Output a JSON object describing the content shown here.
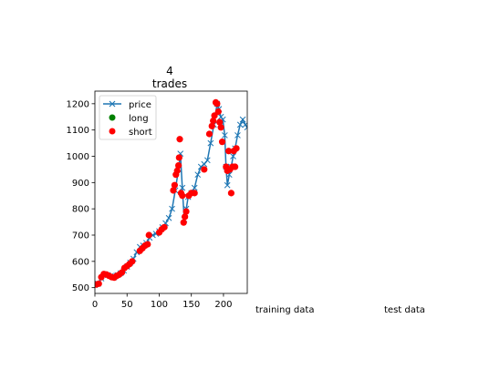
{
  "chart_data": {
    "type": "line",
    "title_lines": [
      "4",
      "trades"
    ],
    "xlabel": "",
    "ylabel": "",
    "xlim": [
      0,
      237
    ],
    "ylim": [
      478,
      1248
    ],
    "xticks": [
      0,
      50,
      100,
      150,
      200
    ],
    "yticks": [
      500,
      600,
      700,
      800,
      900,
      1000,
      1100,
      1200
    ],
    "grid": false,
    "legend_position": "top-left",
    "colors": {
      "price": "#1f77b4",
      "long": "#008000",
      "short": "#ff0000"
    },
    "legend": [
      {
        "label": "price",
        "marker": "x-line",
        "color": "#1f77b4"
      },
      {
        "label": "long",
        "marker": "dot",
        "color": "#008000"
      },
      {
        "label": "short",
        "marker": "dot",
        "color": "#ff0000"
      }
    ],
    "series": [
      {
        "name": "price",
        "marker": "x",
        "points": [
          [
            0,
            510
          ],
          [
            5,
            515
          ],
          [
            10,
            535
          ],
          [
            15,
            550
          ],
          [
            20,
            548
          ],
          [
            25,
            545
          ],
          [
            30,
            540
          ],
          [
            35,
            548
          ],
          [
            40,
            555
          ],
          [
            45,
            565
          ],
          [
            50,
            580
          ],
          [
            55,
            595
          ],
          [
            60,
            610
          ],
          [
            65,
            635
          ],
          [
            70,
            655
          ],
          [
            75,
            660
          ],
          [
            80,
            670
          ],
          [
            85,
            690
          ],
          [
            90,
            700
          ],
          [
            95,
            705
          ],
          [
            100,
            715
          ],
          [
            105,
            730
          ],
          [
            110,
            745
          ],
          [
            115,
            765
          ],
          [
            120,
            800
          ],
          [
            125,
            870
          ],
          [
            130,
            950
          ],
          [
            133,
            1010
          ],
          [
            136,
            880
          ],
          [
            139,
            760
          ],
          [
            142,
            800
          ],
          [
            145,
            845
          ],
          [
            150,
            860
          ],
          [
            155,
            880
          ],
          [
            160,
            930
          ],
          [
            165,
            960
          ],
          [
            170,
            970
          ],
          [
            175,
            985
          ],
          [
            180,
            1050
          ],
          [
            185,
            1120
          ],
          [
            190,
            1200
          ],
          [
            193,
            1180
          ],
          [
            196,
            1150
          ],
          [
            199,
            1140
          ],
          [
            202,
            1080
          ],
          [
            204,
            960
          ],
          [
            206,
            890
          ],
          [
            209,
            930
          ],
          [
            212,
            960
          ],
          [
            215,
            1000
          ],
          [
            218,
            1030
          ],
          [
            222,
            1080
          ],
          [
            226,
            1120
          ],
          [
            230,
            1140
          ],
          [
            234,
            1120
          ],
          [
            237,
            1110
          ]
        ]
      },
      {
        "name": "long",
        "marker": "dot",
        "points": []
      },
      {
        "name": "short",
        "marker": "dot",
        "points": [
          [
            2,
            512
          ],
          [
            6,
            515
          ],
          [
            10,
            540
          ],
          [
            14,
            552
          ],
          [
            18,
            550
          ],
          [
            22,
            545
          ],
          [
            26,
            540
          ],
          [
            30,
            538
          ],
          [
            34,
            545
          ],
          [
            38,
            550
          ],
          [
            42,
            558
          ],
          [
            46,
            575
          ],
          [
            50,
            582
          ],
          [
            54,
            590
          ],
          [
            58,
            600
          ],
          [
            70,
            640
          ],
          [
            74,
            650
          ],
          [
            78,
            660
          ],
          [
            82,
            665
          ],
          [
            84,
            700
          ],
          [
            100,
            710
          ],
          [
            104,
            722
          ],
          [
            108,
            730
          ],
          [
            122,
            870
          ],
          [
            124,
            890
          ],
          [
            126,
            930
          ],
          [
            128,
            945
          ],
          [
            130,
            965
          ],
          [
            131,
            995
          ],
          [
            132,
            1065
          ],
          [
            134,
            860
          ],
          [
            136,
            850
          ],
          [
            138,
            748
          ],
          [
            140,
            770
          ],
          [
            142,
            790
          ],
          [
            146,
            850
          ],
          [
            150,
            860
          ],
          [
            155,
            860
          ],
          [
            170,
            950
          ],
          [
            178,
            1085
          ],
          [
            182,
            1115
          ],
          [
            184,
            1135
          ],
          [
            186,
            1155
          ],
          [
            188,
            1205
          ],
          [
            190,
            1200
          ],
          [
            192,
            1170
          ],
          [
            194,
            1130
          ],
          [
            196,
            1110
          ],
          [
            198,
            1055
          ],
          [
            204,
            960
          ],
          [
            206,
            945
          ],
          [
            208,
            1020
          ],
          [
            210,
            950
          ],
          [
            212,
            860
          ],
          [
            214,
            960
          ],
          [
            216,
            1020
          ],
          [
            218,
            960
          ],
          [
            220,
            1030
          ]
        ]
      }
    ]
  },
  "figure_texts": {
    "training": "training data",
    "test": "test data"
  }
}
